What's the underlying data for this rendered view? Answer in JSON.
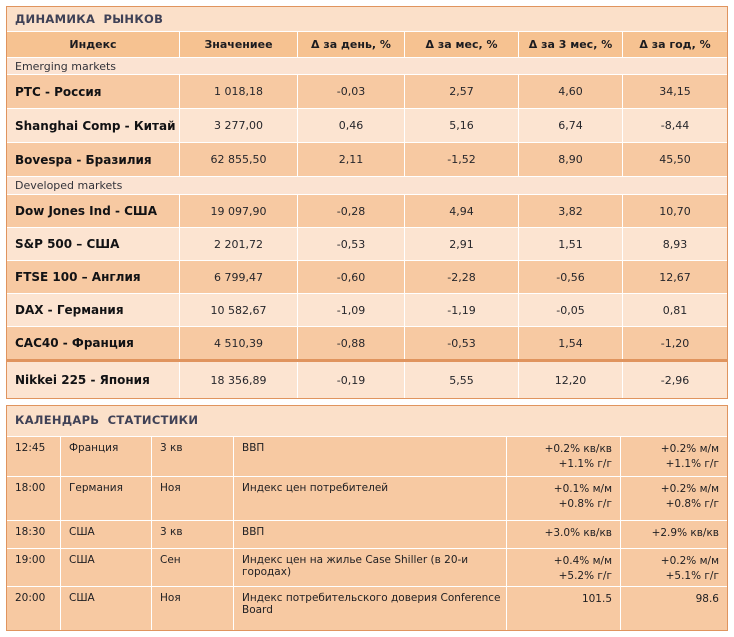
{
  "colors": {
    "accent_border": "#e0945e",
    "panel_title_bg": "#fbe0c9",
    "header_row_bg": "#f6c291",
    "row_dark": "#f7c9a2",
    "row_light": "#fce4d1",
    "section_bg": "#fbe3d2",
    "title_text": "#3f4156"
  },
  "markets": {
    "title": "ДИНАМИКА РЫНКОВ",
    "headers": [
      "Индекс",
      "Значениее",
      "Δ за день, %",
      "Δ за мес, %",
      "Δ за 3 мес, %",
      "Δ за год, %"
    ],
    "section1_label": "Emerging markets",
    "section2_label": "Developed markets",
    "rows": [
      {
        "name": "РТС - Россия",
        "value": "1 018,18",
        "day": "-0,03",
        "month": "2,57",
        "month3": "4,60",
        "year": "34,15"
      },
      {
        "name": "Shanghai Comp - Китай",
        "value": "3 277,00",
        "day": "0,46",
        "month": "5,16",
        "month3": "6,74",
        "year": "-8,44"
      },
      {
        "name": "Bovespa - Бразилия",
        "value": "62 855,50",
        "day": "2,11",
        "month": "-1,52",
        "month3": "8,90",
        "year": "45,50"
      },
      {
        "name": "Dow Jones Ind - США",
        "value": "19 097,90",
        "day": "-0,28",
        "month": "4,94",
        "month3": "3,82",
        "year": "10,70"
      },
      {
        "name": "S&P 500 – США",
        "value": "2 201,72",
        "day": "-0,53",
        "month": "2,91",
        "month3": "1,51",
        "year": "8,93"
      },
      {
        "name": "FTSE 100 – Англия",
        "value": "6 799,47",
        "day": "-0,60",
        "month": "-2,28",
        "month3": "-0,56",
        "year": "12,67"
      },
      {
        "name": "DAX - Германия",
        "value": "10 582,67",
        "day": "-1,09",
        "month": "-1,19",
        "month3": "-0,05",
        "year": "0,81"
      },
      {
        "name": "CAC40 - Франция",
        "value": "4 510,39",
        "day": "-0,88",
        "month": "-0,53",
        "month3": "1,54",
        "year": "-1,20"
      },
      {
        "name": "Nikkei 225 - Япония",
        "value": "18 356,89",
        "day": "-0,19",
        "month": "5,55",
        "month3": "12,20",
        "year": "-2,96"
      }
    ]
  },
  "calendar": {
    "title": "КАЛЕНДАРЬ СТАТИСТИКИ",
    "rows": [
      {
        "time": "12:45",
        "country": "Франция",
        "period": "3 кв",
        "event": "ВВП",
        "forecast": "+0.2% кв/кв\n+1.1% г/г",
        "previous": "+0.2% м/м\n+1.1% г/г"
      },
      {
        "time": "18:00",
        "country": "Германия",
        "period": "Ноя",
        "event": "Индекс цен потребителей",
        "forecast": "+0.1% м/м\n+0.8% г/г",
        "previous": "+0.2% м/м\n+0.8% г/г"
      },
      {
        "time": "18:30",
        "country": "США",
        "period": "3 кв",
        "event": "ВВП",
        "forecast": "+3.0% кв/кв",
        "previous": "+2.9% кв/кв"
      },
      {
        "time": "19:00",
        "country": "США",
        "period": "Сен",
        "event": "Индекс цен на жилье Case Shiller (в 20-и городах)",
        "forecast": "+0.4% м/м\n+5.2% г/г",
        "previous": "+0.2% м/м\n+5.1% г/г"
      },
      {
        "time": "20:00",
        "country": "США",
        "period": "Ноя",
        "event": "Индекс потребительского доверия Conference Board",
        "forecast": "101.5",
        "previous": "98.6"
      }
    ]
  }
}
